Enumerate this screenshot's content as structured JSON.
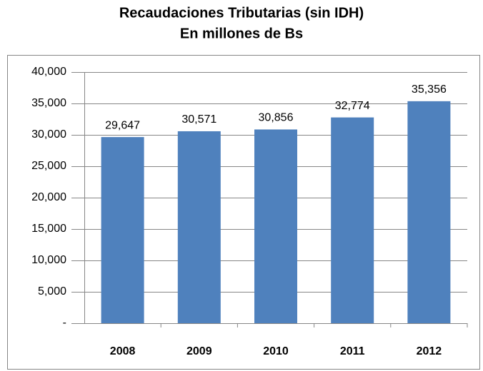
{
  "chart_data": {
    "type": "bar",
    "title": "Recaudaciones Tributarias (sin IDH)",
    "subtitle": "En millones de Bs",
    "categories": [
      "2008",
      "2009",
      "2010",
      "2011",
      "2012"
    ],
    "values": [
      29647,
      30571,
      30856,
      32774,
      35356
    ],
    "value_labels": [
      "29,647",
      "30,571",
      "30,856",
      "32,774",
      "35,356"
    ],
    "color": "#4f81bd",
    "ylim": [
      0,
      40000
    ],
    "yticks": [
      {
        "value": 0,
        "label": "-"
      },
      {
        "value": 5000,
        "label": "5,000"
      },
      {
        "value": 10000,
        "label": "10,000"
      },
      {
        "value": 15000,
        "label": "15,000"
      },
      {
        "value": 20000,
        "label": "20,000"
      },
      {
        "value": 25000,
        "label": "25,000"
      },
      {
        "value": 30000,
        "label": "30,000"
      },
      {
        "value": 35000,
        "label": "35,000"
      },
      {
        "value": 40000,
        "label": "40,000"
      }
    ],
    "grid": true
  }
}
